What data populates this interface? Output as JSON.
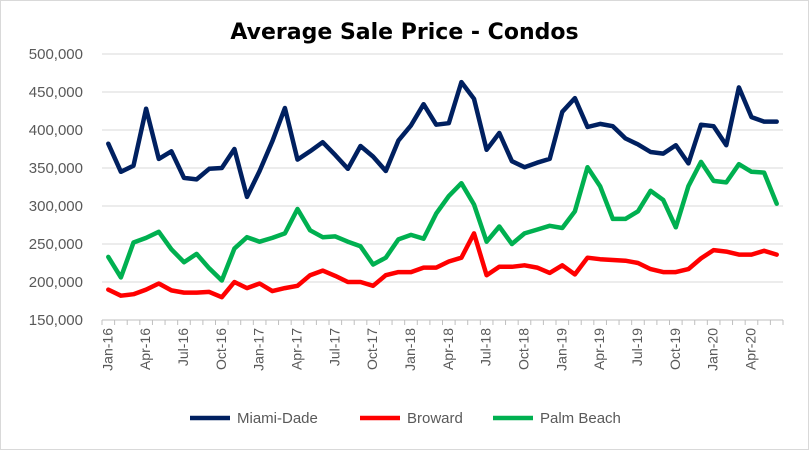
{
  "chart_data": {
    "type": "line",
    "title": "Average Sale Price - Condos",
    "xlabel": "",
    "ylabel": "",
    "ylim": [
      150000,
      500000
    ],
    "yticks": [
      150000,
      200000,
      250000,
      300000,
      350000,
      400000,
      450000,
      500000
    ],
    "ytick_labels": [
      "150,000",
      "200,000",
      "250,000",
      "300,000",
      "350,000",
      "400,000",
      "450,000",
      "500,000"
    ],
    "x": [
      "Jan-16",
      "Feb-16",
      "Mar-16",
      "Apr-16",
      "May-16",
      "Jun-16",
      "Jul-16",
      "Aug-16",
      "Sep-16",
      "Oct-16",
      "Nov-16",
      "Dec-16",
      "Jan-17",
      "Feb-17",
      "Mar-17",
      "Apr-17",
      "May-17",
      "Jun-17",
      "Jul-17",
      "Aug-17",
      "Sep-17",
      "Oct-17",
      "Nov-17",
      "Dec-17",
      "Jan-18",
      "Feb-18",
      "Mar-18",
      "Apr-18",
      "May-18",
      "Jun-18",
      "Jul-18",
      "Aug-18",
      "Sep-18",
      "Oct-18",
      "Nov-18",
      "Dec-18",
      "Jan-19",
      "Feb-19",
      "Mar-19",
      "Apr-19",
      "May-19",
      "Jun-19",
      "Jul-19",
      "Aug-19",
      "Sep-19",
      "Oct-19",
      "Nov-19",
      "Dec-19",
      "Jan-20",
      "Feb-20",
      "Mar-20",
      "Apr-20",
      "May-20",
      "Jun-20"
    ],
    "tick_labels": [
      "Jan-16",
      "Apr-16",
      "Jul-16",
      "Oct-16",
      "Jan-17",
      "Apr-17",
      "Jul-17",
      "Oct-17",
      "Jan-18",
      "Apr-18",
      "Jul-18",
      "Oct-18",
      "Jan-19",
      "Apr-19",
      "Jul-19",
      "Oct-19",
      "Jan-20",
      "Apr-20"
    ],
    "series": [
      {
        "name": "Miami-Dade",
        "color": "#002060",
        "values": [
          382000,
          345000,
          353000,
          428000,
          362000,
          372000,
          337000,
          335000,
          349000,
          350000,
          375000,
          312000,
          346000,
          385000,
          429000,
          361000,
          372000,
          384000,
          367000,
          349000,
          379000,
          365000,
          346000,
          386000,
          406000,
          434000,
          407000,
          409000,
          463000,
          441000,
          374000,
          396000,
          359000,
          351000,
          357000,
          362000,
          424000,
          442000,
          404000,
          408000,
          405000,
          389000,
          381000,
          371000,
          369000,
          380000,
          356000,
          407000,
          405000,
          380000,
          456000,
          417000,
          411000,
          411000
        ]
      },
      {
        "name": "Broward",
        "color": "#ff0000",
        "values": [
          190000,
          182000,
          184000,
          190000,
          198000,
          189000,
          186000,
          186000,
          187000,
          180000,
          200000,
          192000,
          198000,
          188000,
          192000,
          195000,
          209000,
          215000,
          208000,
          200000,
          200000,
          195000,
          209000,
          213000,
          213000,
          219000,
          219000,
          227000,
          232000,
          264000,
          209000,
          220000,
          220000,
          222000,
          219000,
          212000,
          222000,
          210000,
          232000,
          230000,
          229000,
          228000,
          225000,
          217000,
          213000,
          213000,
          217000,
          231000,
          242000,
          240000,
          236000,
          236000,
          241000,
          236000
        ]
      },
      {
        "name": "Palm Beach",
        "color": "#00b050",
        "values": [
          233000,
          206000,
          252000,
          258000,
          266000,
          243000,
          226000,
          237000,
          218000,
          202000,
          244000,
          259000,
          253000,
          258000,
          264000,
          296000,
          268000,
          259000,
          260000,
          253000,
          247000,
          223000,
          232000,
          256000,
          262000,
          257000,
          290000,
          313000,
          330000,
          302000,
          253000,
          273000,
          250000,
          264000,
          269000,
          274000,
          271000,
          293000,
          351000,
          326000,
          283000,
          283000,
          293000,
          320000,
          308000,
          272000,
          326000,
          358000,
          333000,
          331000,
          355000,
          345000,
          344000,
          303000
        ]
      }
    ],
    "legend": "bottom",
    "grid": "horizontal"
  }
}
